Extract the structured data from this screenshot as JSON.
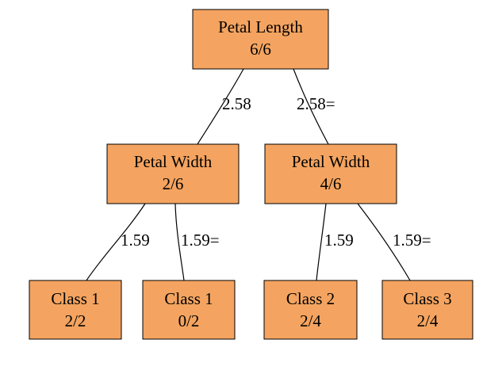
{
  "colors": {
    "node_fill": "#f4a460",
    "node_stroke": "#000000",
    "edge": "#000000"
  },
  "nodes": {
    "root": {
      "title": "Petal  Length",
      "value": "6/6"
    },
    "left": {
      "title": "Petal  Width",
      "value": "2/6"
    },
    "right": {
      "title": "Petal  Width",
      "value": "4/6"
    },
    "leaf1": {
      "title": "Class 1",
      "value": "2/2"
    },
    "leaf2": {
      "title": "Class 1",
      "value": "0/2"
    },
    "leaf3": {
      "title": "Class 2",
      "value": "2/4"
    },
    "leaf4": {
      "title": "Class 3",
      "value": "2/4"
    }
  },
  "edges": {
    "root_left": "2.58",
    "root_right": "2.58=",
    "left_leaf1": "1.59",
    "left_leaf2": "1.59=",
    "right_leaf3": "1.59",
    "right_leaf4": "1.59="
  }
}
